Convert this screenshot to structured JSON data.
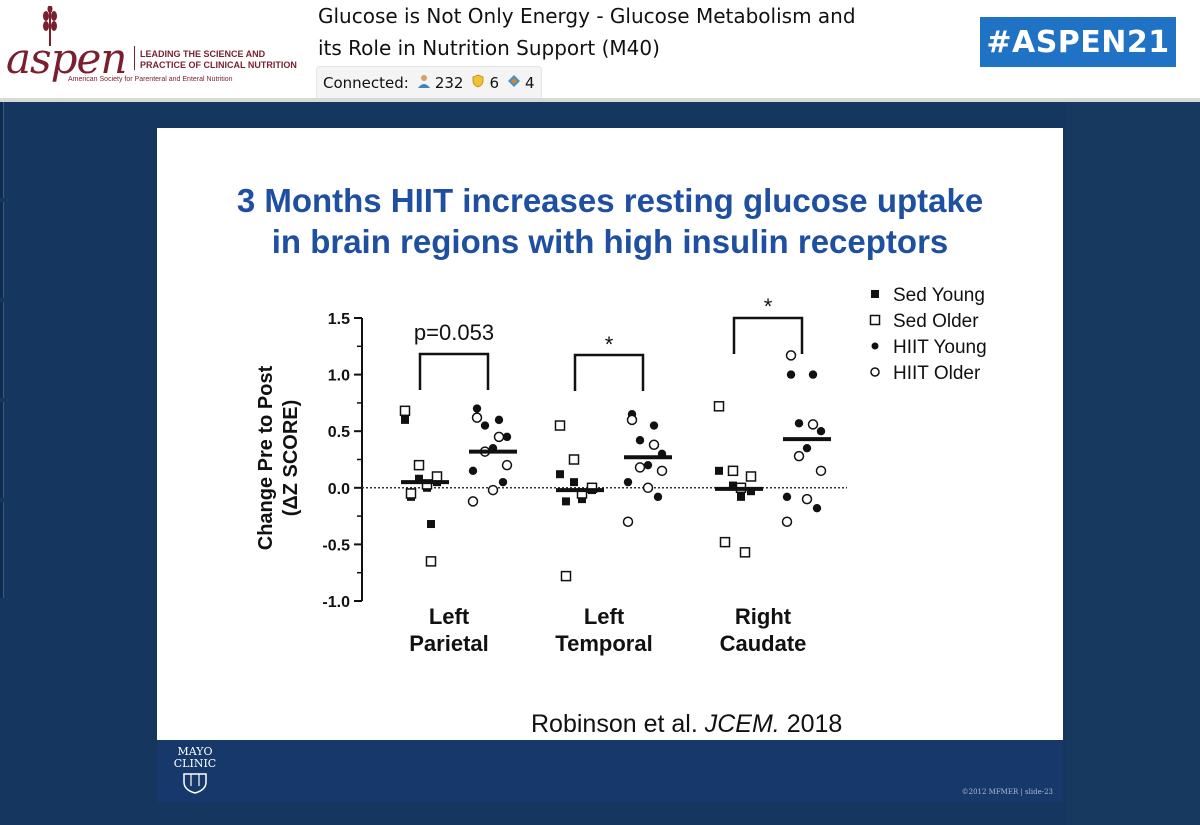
{
  "header": {
    "logo": {
      "wordmark": "aspen",
      "tagline": "LEADING THE SCIENCE AND PRACTICE OF CLINICAL NUTRITION",
      "subline": "American Society for Parenteral and Enteral Nutrition"
    },
    "session_title_line1": "Glucose is Not Only Energy -  Glucose Metabolism and",
    "session_title_line2": "its Role in Nutrition Support (M40)",
    "connected_label": "Connected:",
    "connected_counts": [
      {
        "icon": "person-icon",
        "value": "232"
      },
      {
        "icon": "shield-icon",
        "value": "6"
      },
      {
        "icon": "diamond-icon",
        "value": "4"
      }
    ],
    "hashtag": "#ASPEN21"
  },
  "colors": {
    "aspen_maroon": "#7a1f2e",
    "hashtag_blue": "#1f72c4",
    "stage_navy": "#14365f",
    "slide_title_blue": "#1f4fa0",
    "footer_navy": "#16386a"
  },
  "slide": {
    "title_line1": "3 Months HIIT increases resting glucose uptake",
    "title_line2": "in brain regions with high insulin receptors",
    "citation_author": "Robinson et al.",
    "citation_journal": "JCEM.",
    "citation_year": "2018",
    "footer_logo": "MAYO CLINIC",
    "footer_copyright": "©2012 MFMER  |  slide-23"
  },
  "chart_data": {
    "type": "scatter",
    "ylabel_line1": "Change Pre to Post",
    "ylabel_line2": "(ΔZ SCORE)",
    "ylim": [
      -1.0,
      1.5
    ],
    "yticks": [
      "1.5",
      "1.0",
      "0.5",
      "0.0",
      "-0.5",
      "-1.0"
    ],
    "reference_line": 0.0,
    "categories": [
      {
        "line1": "Left",
        "line2": "Parietal"
      },
      {
        "line1": "Left",
        "line2": "Temporal"
      },
      {
        "line1": "Right",
        "line2": "Caudate"
      }
    ],
    "legend": [
      {
        "label": "Sed Young",
        "marker": "filled-square"
      },
      {
        "label": "Sed Older",
        "marker": "open-square"
      },
      {
        "label": "HIIT Young",
        "marker": "filled-circle"
      },
      {
        "label": "HIIT Older",
        "marker": "open-circle"
      }
    ],
    "legend_placement": "top-right",
    "annotations": [
      "p=0.053",
      "*",
      "*"
    ],
    "series": [
      {
        "name": "Sed Young",
        "marker": "filled-square",
        "group": "sed",
        "points": [
          [
            0,
            0.6
          ],
          [
            0,
            0.08
          ],
          [
            0,
            0.05
          ],
          [
            0,
            0.0
          ],
          [
            0,
            -0.08
          ],
          [
            0,
            -0.32
          ],
          [
            1,
            0.12
          ],
          [
            1,
            0.05
          ],
          [
            1,
            -0.02
          ],
          [
            1,
            -0.1
          ],
          [
            1,
            -0.12
          ],
          [
            2,
            0.15
          ],
          [
            2,
            0.02
          ],
          [
            2,
            -0.03
          ],
          [
            2,
            -0.08
          ]
        ]
      },
      {
        "name": "Sed Older",
        "marker": "open-square",
        "group": "sed",
        "points": [
          [
            0,
            0.68
          ],
          [
            0,
            0.2
          ],
          [
            0,
            0.1
          ],
          [
            0,
            0.03
          ],
          [
            0,
            -0.05
          ],
          [
            0,
            -0.65
          ],
          [
            1,
            0.55
          ],
          [
            1,
            0.25
          ],
          [
            1,
            0.0
          ],
          [
            1,
            -0.05
          ],
          [
            1,
            -0.78
          ],
          [
            2,
            0.72
          ],
          [
            2,
            0.15
          ],
          [
            2,
            0.1
          ],
          [
            2,
            0.0
          ],
          [
            2,
            -0.48
          ],
          [
            2,
            -0.57
          ]
        ]
      },
      {
        "name": "HIIT Young",
        "marker": "filled-circle",
        "group": "hiit",
        "points": [
          [
            0,
            0.7
          ],
          [
            0,
            0.6
          ],
          [
            0,
            0.55
          ],
          [
            0,
            0.45
          ],
          [
            0,
            0.35
          ],
          [
            0,
            0.15
          ],
          [
            0,
            0.05
          ],
          [
            1,
            0.65
          ],
          [
            1,
            0.55
          ],
          [
            1,
            0.42
          ],
          [
            1,
            0.3
          ],
          [
            1,
            0.2
          ],
          [
            1,
            0.05
          ],
          [
            1,
            -0.08
          ],
          [
            2,
            1.0
          ],
          [
            2,
            1.0
          ],
          [
            2,
            0.57
          ],
          [
            2,
            0.5
          ],
          [
            2,
            0.35
          ],
          [
            2,
            -0.08
          ],
          [
            2,
            -0.18
          ]
        ]
      },
      {
        "name": "HIIT Older",
        "marker": "open-circle",
        "group": "hiit",
        "points": [
          [
            0,
            0.62
          ],
          [
            0,
            0.45
          ],
          [
            0,
            0.32
          ],
          [
            0,
            0.2
          ],
          [
            0,
            -0.02
          ],
          [
            0,
            -0.12
          ],
          [
            1,
            0.6
          ],
          [
            1,
            0.38
          ],
          [
            1,
            0.18
          ],
          [
            1,
            0.15
          ],
          [
            1,
            0.0
          ],
          [
            1,
            -0.3
          ],
          [
            2,
            1.17
          ],
          [
            2,
            0.56
          ],
          [
            2,
            0.28
          ],
          [
            2,
            0.15
          ],
          [
            2,
            -0.1
          ],
          [
            2,
            -0.3
          ]
        ]
      }
    ],
    "means": [
      {
        "group": "sed",
        "category": 0,
        "value": 0.05
      },
      {
        "group": "hiit",
        "category": 0,
        "value": 0.32
      },
      {
        "group": "sed",
        "category": 1,
        "value": -0.02
      },
      {
        "group": "hiit",
        "category": 1,
        "value": 0.27
      },
      {
        "group": "sed",
        "category": 2,
        "value": -0.01
      },
      {
        "group": "hiit",
        "category": 2,
        "value": 0.43
      }
    ]
  }
}
